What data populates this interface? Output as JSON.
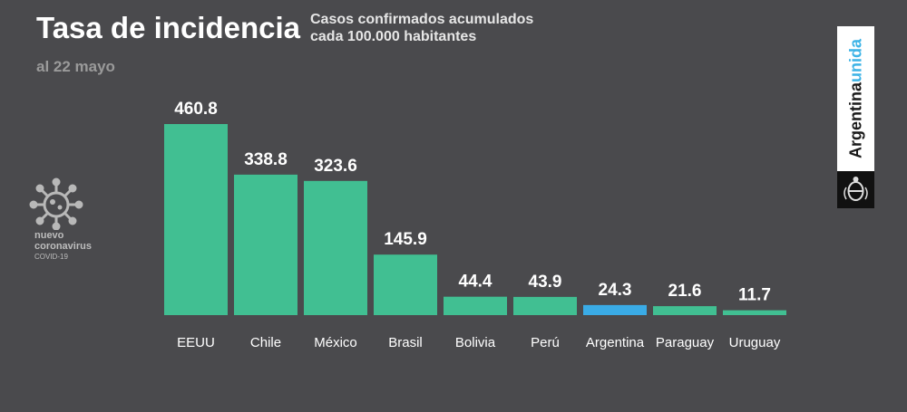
{
  "header": {
    "title": "Tasa de incidencia",
    "subtitle_line1": "Casos confirmados acumulados",
    "subtitle_line2": "cada 100.000 habitantes",
    "date": "al 22 mayo"
  },
  "logo": {
    "line1": "nuevo",
    "line2": "coronavirus",
    "line3": "COVID-19"
  },
  "badge": {
    "word1": "Argentina",
    "word2": "unida"
  },
  "colors": {
    "background": "#4a4a4d",
    "bar": "#41bf92",
    "highlight": "#3aabe6"
  },
  "chart_data": {
    "type": "bar",
    "title": "Tasa de incidencia",
    "categories": [
      "EEUU",
      "Chile",
      "México",
      "Brasil",
      "Bolivia",
      "Perú",
      "Argentina",
      "Paraguay",
      "Uruguay"
    ],
    "values": [
      460.8,
      338.8,
      323.6,
      145.9,
      44.4,
      43.9,
      24.3,
      21.6,
      11.7
    ],
    "labels": [
      "460.8",
      "338.8",
      "323.6",
      "145.9",
      "44.4",
      "43.9",
      "24.3",
      "21.6",
      "11.7"
    ],
    "highlight_category": "Argentina",
    "ylim": [
      0,
      460.8
    ],
    "grid": false,
    "legend": "none"
  }
}
